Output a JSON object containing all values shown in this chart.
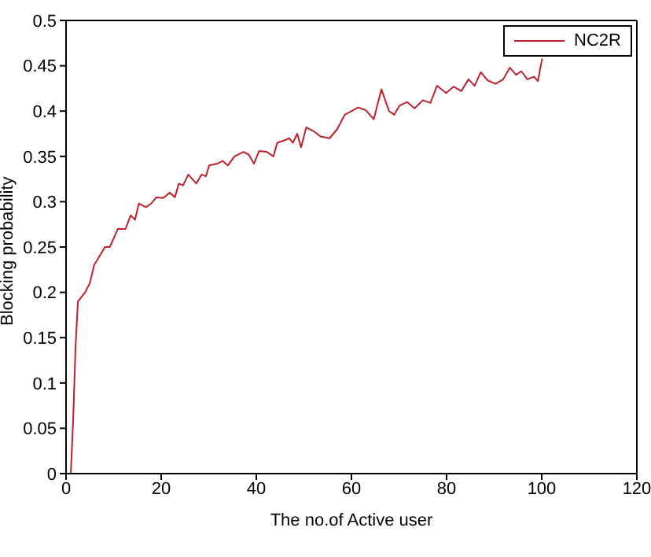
{
  "chart_data": {
    "type": "line",
    "xlabel": "The no.of Active user",
    "ylabel": "Blocking probability",
    "xlim": [
      0,
      120
    ],
    "xticks": [
      0,
      20,
      40,
      60,
      80,
      100,
      120
    ],
    "ylim": [
      0,
      0.5
    ],
    "yticks": [
      0,
      0.05,
      0.1,
      0.15,
      0.2,
      0.25,
      0.3,
      0.35,
      0.4,
      0.45,
      0.5
    ],
    "legend": "top right",
    "marker": "none",
    "line_style": "solid",
    "series": [
      {
        "name": "NC2R",
        "color": "#c0202a",
        "x": [
          1,
          1.5,
          2,
          2.5,
          4,
          5,
          5.9,
          8.2,
          9.2,
          10.9,
          12.5,
          13.6,
          14.5,
          15.3,
          16.8,
          17.9,
          19,
          20.4,
          21.8,
          22.9,
          23.7,
          24.6,
          25.7,
          27.4,
          28.5,
          29.4,
          30.1,
          31.8,
          32.9,
          34,
          35.4,
          37.3,
          38.4,
          39.5,
          40.6,
          42.2,
          43.6,
          44.4,
          46.1,
          46.9,
          47.7,
          48.6,
          49.4,
          50.5,
          52,
          53.5,
          55.4,
          57,
          58.6,
          61.4,
          63,
          64.7,
          66.3,
          67.9,
          69,
          70.1,
          71.7,
          73.3,
          75,
          76.6,
          78,
          79.9,
          81.5,
          83.1,
          84.6,
          85.9,
          87.2,
          88.6,
          90.3,
          91.9,
          93.3,
          94.6,
          95.7,
          97,
          98.4,
          99.2,
          100.1
        ],
        "values": [
          0,
          0.06,
          0.14,
          0.19,
          0.2,
          0.21,
          0.23,
          0.25,
          0.25,
          0.27,
          0.27,
          0.285,
          0.28,
          0.298,
          0.294,
          0.298,
          0.305,
          0.304,
          0.31,
          0.305,
          0.32,
          0.318,
          0.33,
          0.32,
          0.33,
          0.328,
          0.34,
          0.342,
          0.345,
          0.34,
          0.35,
          0.355,
          0.352,
          0.342,
          0.356,
          0.355,
          0.35,
          0.365,
          0.368,
          0.37,
          0.365,
          0.375,
          0.36,
          0.382,
          0.378,
          0.372,
          0.37,
          0.38,
          0.396,
          0.404,
          0.401,
          0.391,
          0.424,
          0.4,
          0.396,
          0.406,
          0.41,
          0.403,
          0.412,
          0.409,
          0.428,
          0.42,
          0.427,
          0.422,
          0.435,
          0.428,
          0.443,
          0.434,
          0.43,
          0.435,
          0.448,
          0.44,
          0.444,
          0.435,
          0.438,
          0.433,
          0.458
        ]
      }
    ]
  }
}
